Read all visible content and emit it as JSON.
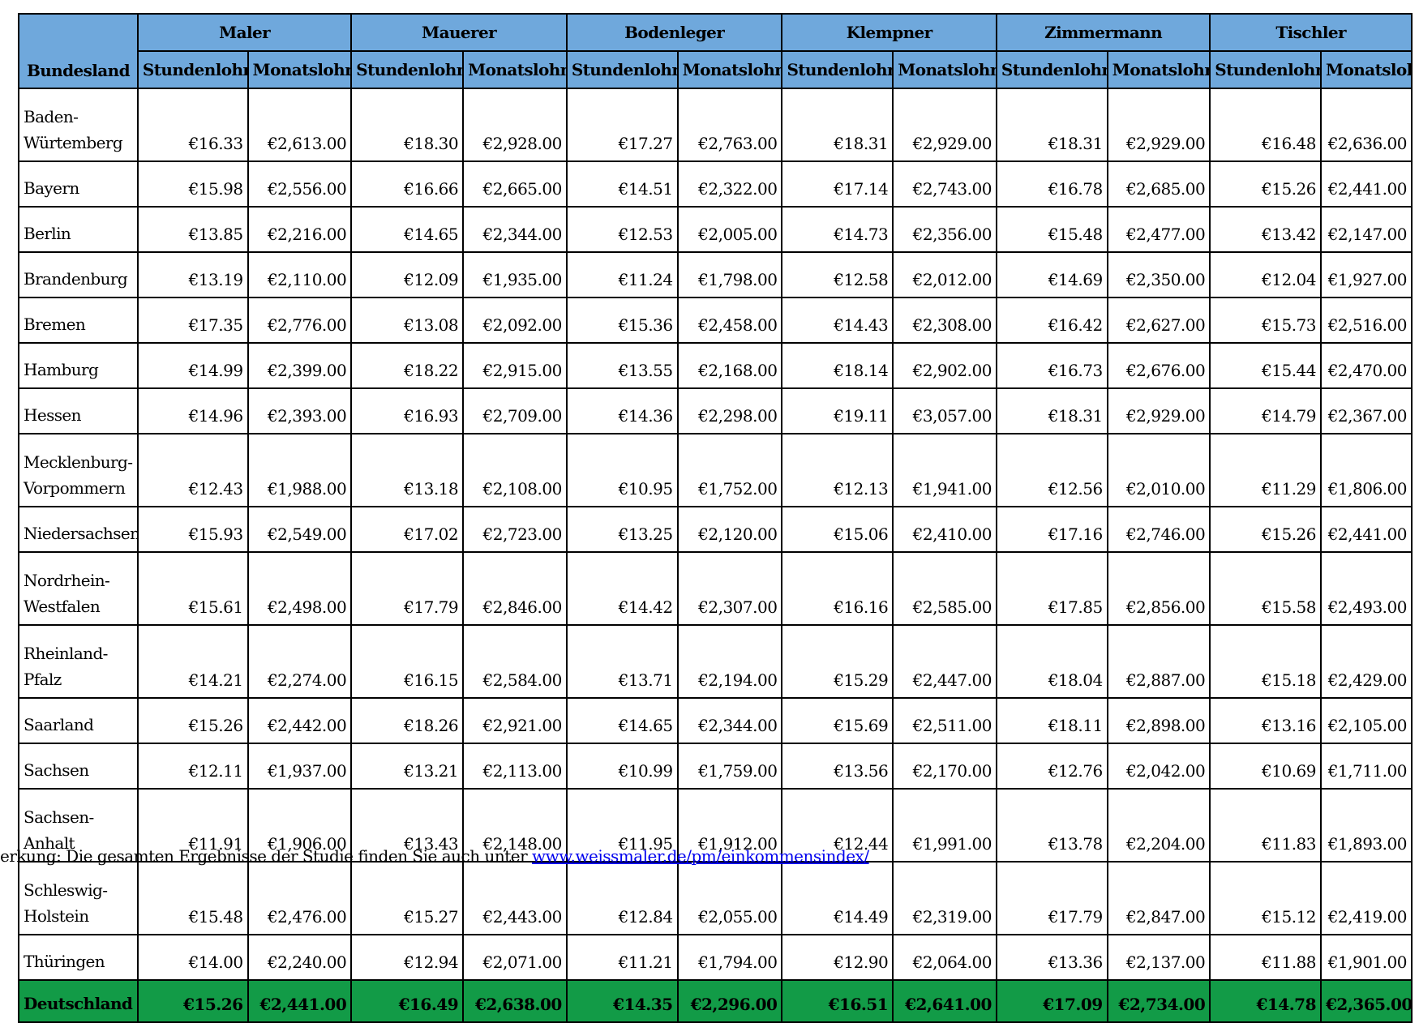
{
  "table": {
    "corner_label": "Bundesland",
    "trades": [
      "Maler",
      "Mauerer",
      "Bodenleger",
      "Klempner",
      "Zimmermann",
      "Tischler"
    ],
    "sub_headers": [
      "Stundenlohn",
      "Monatslohn"
    ],
    "rows": [
      {
        "state": "Baden-Würtemberg",
        "tall": true,
        "values": [
          "€16.33",
          "€2,613.00",
          "€18.30",
          "€2,928.00",
          "€17.27",
          "€2,763.00",
          "€18.31",
          "€2,929.00",
          "€18.31",
          "€2,929.00",
          "€16.48",
          "€2,636.00"
        ]
      },
      {
        "state": "Bayern",
        "values": [
          "€15.98",
          "€2,556.00",
          "€16.66",
          "€2,665.00",
          "€14.51",
          "€2,322.00",
          "€17.14",
          "€2,743.00",
          "€16.78",
          "€2,685.00",
          "€15.26",
          "€2,441.00"
        ]
      },
      {
        "state": "Berlin",
        "values": [
          "€13.85",
          "€2,216.00",
          "€14.65",
          "€2,344.00",
          "€12.53",
          "€2,005.00",
          "€14.73",
          "€2,356.00",
          "€15.48",
          "€2,477.00",
          "€13.42",
          "€2,147.00"
        ]
      },
      {
        "state": "Brandenburg",
        "values": [
          "€13.19",
          "€2,110.00",
          "€12.09",
          "€1,935.00",
          "€11.24",
          "€1,798.00",
          "€12.58",
          "€2,012.00",
          "€14.69",
          "€2,350.00",
          "€12.04",
          "€1,927.00"
        ]
      },
      {
        "state": "Bremen",
        "values": [
          "€17.35",
          "€2,776.00",
          "€13.08",
          "€2,092.00",
          "€15.36",
          "€2,458.00",
          "€14.43",
          "€2,308.00",
          "€16.42",
          "€2,627.00",
          "€15.73",
          "€2,516.00"
        ]
      },
      {
        "state": "Hamburg",
        "values": [
          "€14.99",
          "€2,399.00",
          "€18.22",
          "€2,915.00",
          "€13.55",
          "€2,168.00",
          "€18.14",
          "€2,902.00",
          "€16.73",
          "€2,676.00",
          "€15.44",
          "€2,470.00"
        ]
      },
      {
        "state": "Hessen",
        "values": [
          "€14.96",
          "€2,393.00",
          "€16.93",
          "€2,709.00",
          "€14.36",
          "€2,298.00",
          "€19.11",
          "€3,057.00",
          "€18.31",
          "€2,929.00",
          "€14.79",
          "€2,367.00"
        ]
      },
      {
        "state": "Mecklenburg-Vorpommern",
        "tall": true,
        "values": [
          "€12.43",
          "€1,988.00",
          "€13.18",
          "€2,108.00",
          "€10.95",
          "€1,752.00",
          "€12.13",
          "€1,941.00",
          "€12.56",
          "€2,010.00",
          "€11.29",
          "€1,806.00"
        ]
      },
      {
        "state": "Niedersachsen",
        "values": [
          "€15.93",
          "€2,549.00",
          "€17.02",
          "€2,723.00",
          "€13.25",
          "€2,120.00",
          "€15.06",
          "€2,410.00",
          "€17.16",
          "€2,746.00",
          "€15.26",
          "€2,441.00"
        ]
      },
      {
        "state": "Nordrhein-Westfalen",
        "tall": true,
        "values": [
          "€15.61",
          "€2,498.00",
          "€17.79",
          "€2,846.00",
          "€14.42",
          "€2,307.00",
          "€16.16",
          "€2,585.00",
          "€17.85",
          "€2,856.00",
          "€15.58",
          "€2,493.00"
        ]
      },
      {
        "state": "Rheinland-Pfalz",
        "tall": true,
        "values": [
          "€14.21",
          "€2,274.00",
          "€16.15",
          "€2,584.00",
          "€13.71",
          "€2,194.00",
          "€15.29",
          "€2,447.00",
          "€18.04",
          "€2,887.00",
          "€15.18",
          "€2,429.00"
        ]
      },
      {
        "state": "Saarland",
        "values": [
          "€15.26",
          "€2,442.00",
          "€18.26",
          "€2,921.00",
          "€14.65",
          "€2,344.00",
          "€15.69",
          "€2,511.00",
          "€18.11",
          "€2,898.00",
          "€13.16",
          "€2,105.00"
        ]
      },
      {
        "state": "Sachsen",
        "values": [
          "€12.11",
          "€1,937.00",
          "€13.21",
          "€2,113.00",
          "€10.99",
          "€1,759.00",
          "€13.56",
          "€2,170.00",
          "€12.76",
          "€2,042.00",
          "€10.69",
          "€1,711.00"
        ]
      },
      {
        "state": "Sachsen-Anhalt",
        "tall": true,
        "values": [
          "€11.91",
          "€1,906.00",
          "€13.43",
          "€2,148.00",
          "€11.95",
          "€1,912.00",
          "€12.44",
          "€1,991.00",
          "€13.78",
          "€2,204.00",
          "€11.83",
          "€1,893.00"
        ]
      },
      {
        "state": "Schleswig-Holstein",
        "tall": true,
        "values": [
          "€15.48",
          "€2,476.00",
          "€15.27",
          "€2,443.00",
          "€12.84",
          "€2,055.00",
          "€14.49",
          "€2,319.00",
          "€17.79",
          "€2,847.00",
          "€15.12",
          "€2,419.00"
        ]
      },
      {
        "state": "Thüringen",
        "values": [
          "€14.00",
          "€2,240.00",
          "€12.94",
          "€2,071.00",
          "€11.21",
          "€1,794.00",
          "€12.90",
          "€2,064.00",
          "€13.36",
          "€2,137.00",
          "€11.88",
          "€1,901.00"
        ]
      }
    ],
    "total_row": {
      "state": "Deutschland",
      "values": [
        "€15.26",
        "€2,441.00",
        "€16.49",
        "€2,638.00",
        "€14.35",
        "€2,296.00",
        "€16.51",
        "€2,641.00",
        "€17.09",
        "€2,734.00",
        "€14.78",
        "€2,365.00"
      ]
    }
  },
  "colors": {
    "header_bg": "#6fa8dc",
    "total_bg": "#129b47",
    "link": "#0000ee"
  },
  "note": {
    "text": "erkung: Die gesamten Ergebnisse der Studie finden Sie auch unter ",
    "link_text": "www.weissmaler.de/pm/einkommensindex/"
  }
}
